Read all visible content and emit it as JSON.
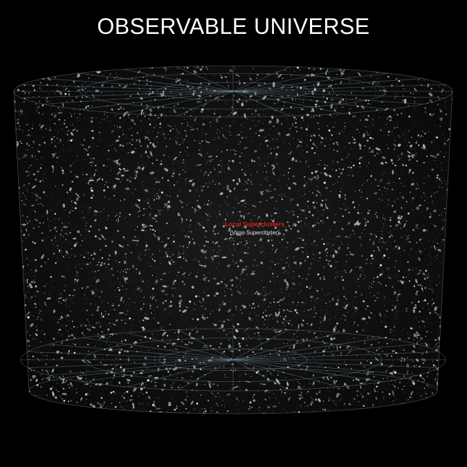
{
  "title": "OBSERVABLE UNIVERSE",
  "labels": {
    "supercluster": "Local Superclusters",
    "supercluster_sub": "(Virgo Supercluster)"
  },
  "colors": {
    "background": "#000000",
    "wireframe": "#7a9aa8",
    "label_highlight": "#d42020",
    "label_text": "#e8e8e8"
  }
}
